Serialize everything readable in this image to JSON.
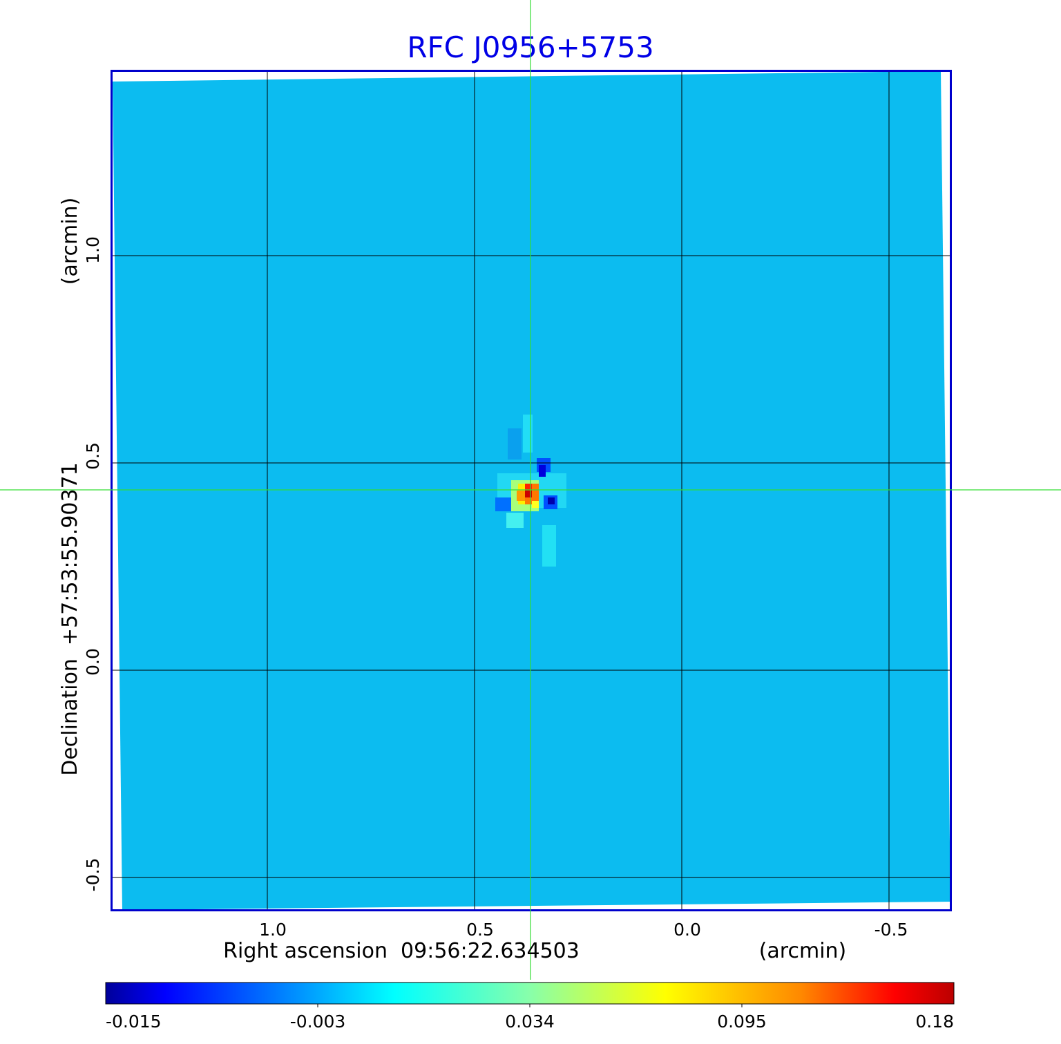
{
  "chart_data": {
    "type": "heatmap",
    "title": "RFC J0956+5753",
    "xlabel": "Right ascension  09:56:22.634503",
    "xunit": "(arcmin)",
    "ylabel": "Declination  +57:53:55.90371",
    "yunit": "(arcmin)",
    "x_ticks": [
      "1.0",
      "0.5",
      "0.0",
      "-0.5"
    ],
    "x_tick_values": [
      1.0,
      0.5,
      0.0,
      -0.5
    ],
    "y_ticks": [
      "1.0",
      "0.5",
      "0.0",
      "-0.5"
    ],
    "y_tick_values": [
      1.0,
      0.5,
      0.0,
      -0.5
    ],
    "xlim": [
      1.375,
      -0.65
    ],
    "ylim": [
      -0.58,
      1.445
    ],
    "grid": true,
    "crosshair": {
      "x": 0.365,
      "y": 0.433
    },
    "colorbar": {
      "colormap": "jet",
      "tick_labels": [
        "-0.015",
        "-0.003",
        "0.034",
        "0.095",
        "0.18"
      ],
      "range": [
        -0.015,
        0.18
      ]
    },
    "colors": {
      "title": "#0000e6",
      "frame": "#0000cc",
      "background_field": "#0cbcf0",
      "crosshair": "#33dd33"
    }
  }
}
